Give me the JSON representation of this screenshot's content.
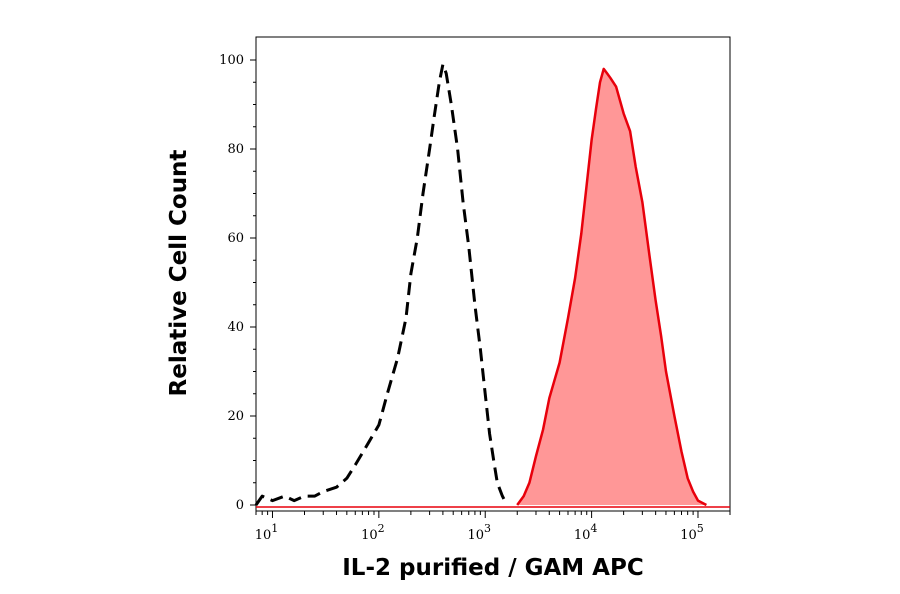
{
  "chart_data": {
    "type": "area",
    "xlabel": "IL-2 purified / GAM APC",
    "ylabel": "Relative Cell Count",
    "x_scale": "log",
    "xlim": [
      7,
      200000
    ],
    "ylim": [
      0,
      100
    ],
    "x_ticks": [
      {
        "value": 10,
        "base": "10",
        "exp": "1"
      },
      {
        "value": 100,
        "base": "10",
        "exp": "2"
      },
      {
        "value": 1000,
        "base": "10",
        "exp": "3"
      },
      {
        "value": 10000,
        "base": "10",
        "exp": "4"
      },
      {
        "value": 100000,
        "base": "10",
        "exp": "5"
      }
    ],
    "y_ticks": [
      0,
      20,
      40,
      60,
      80,
      100
    ],
    "grid": false,
    "series": [
      {
        "style": "dashed-outline",
        "color": "#000000",
        "points": [
          [
            7,
            0
          ],
          [
            8,
            2
          ],
          [
            10,
            1
          ],
          [
            13,
            2
          ],
          [
            16,
            1
          ],
          [
            20,
            2
          ],
          [
            25,
            2
          ],
          [
            30,
            3
          ],
          [
            40,
            4
          ],
          [
            50,
            6
          ],
          [
            60,
            9
          ],
          [
            80,
            14
          ],
          [
            100,
            18
          ],
          [
            120,
            25
          ],
          [
            150,
            33
          ],
          [
            180,
            42
          ],
          [
            200,
            52
          ],
          [
            230,
            60
          ],
          [
            260,
            70
          ],
          [
            300,
            80
          ],
          [
            330,
            87
          ],
          [
            370,
            95
          ],
          [
            400,
            99
          ],
          [
            430,
            97
          ],
          [
            480,
            90
          ],
          [
            550,
            80
          ],
          [
            620,
            68
          ],
          [
            700,
            58
          ],
          [
            800,
            45
          ],
          [
            900,
            35
          ],
          [
            1000,
            25
          ],
          [
            1100,
            16
          ],
          [
            1200,
            10
          ],
          [
            1300,
            5
          ],
          [
            1450,
            2
          ],
          [
            1600,
            0
          ]
        ]
      },
      {
        "style": "filled",
        "color": "#e8000b",
        "fill": "#ff9797",
        "points": [
          [
            2000,
            0
          ],
          [
            2300,
            2
          ],
          [
            2600,
            5
          ],
          [
            3000,
            11
          ],
          [
            3500,
            17
          ],
          [
            4000,
            24
          ],
          [
            5000,
            32
          ],
          [
            6000,
            42
          ],
          [
            7000,
            51
          ],
          [
            8000,
            61
          ],
          [
            9000,
            72
          ],
          [
            10000,
            82
          ],
          [
            11000,
            89
          ],
          [
            12000,
            95
          ],
          [
            13000,
            98
          ],
          [
            14000,
            97
          ],
          [
            15000,
            96
          ],
          [
            17000,
            94
          ],
          [
            20000,
            88
          ],
          [
            23000,
            84
          ],
          [
            26000,
            76
          ],
          [
            30000,
            68
          ],
          [
            35000,
            56
          ],
          [
            40000,
            46
          ],
          [
            45000,
            38
          ],
          [
            50000,
            30
          ],
          [
            60000,
            20
          ],
          [
            70000,
            12
          ],
          [
            80000,
            6
          ],
          [
            90000,
            3
          ],
          [
            100000,
            1
          ],
          [
            120000,
            0
          ]
        ]
      }
    ]
  }
}
